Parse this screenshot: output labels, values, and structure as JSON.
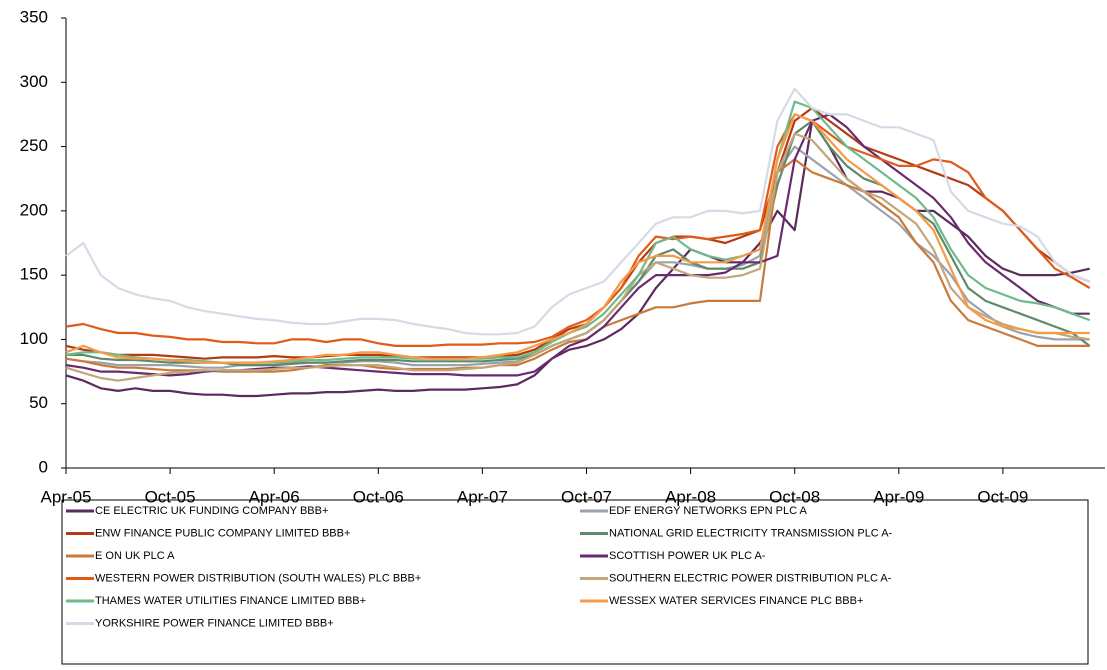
{
  "chart_data": {
    "type": "line",
    "categories": [
      "Apr-05",
      null,
      null,
      null,
      null,
      null,
      "Oct-05",
      null,
      null,
      null,
      null,
      null,
      "Apr-06",
      null,
      null,
      null,
      null,
      null,
      "Oct-06",
      null,
      null,
      null,
      null,
      null,
      "Apr-07",
      null,
      null,
      null,
      null,
      null,
      "Oct-07",
      null,
      null,
      null,
      null,
      null,
      "Apr-08",
      null,
      null,
      null,
      null,
      null,
      "Oct-08",
      null,
      null,
      null,
      null,
      null,
      "Apr-09",
      null,
      null,
      null,
      null,
      null,
      "Oct-09",
      null,
      null,
      null,
      null,
      null
    ],
    "ylim": [
      0,
      350
    ],
    "yticks": [
      0,
      50,
      100,
      150,
      200,
      250,
      300,
      350
    ],
    "grid": false,
    "series": [
      {
        "name": "CE ELECTRIC  UK FUNDING COMPANY BBB+",
        "color": "#5c2a5e",
        "values": [
          72,
          68,
          62,
          60,
          62,
          60,
          60,
          58,
          57,
          57,
          56,
          56,
          57,
          58,
          58,
          59,
          59,
          60,
          61,
          60,
          60,
          61,
          61,
          61,
          62,
          63,
          65,
          72,
          85,
          92,
          95,
          100,
          108,
          120,
          140,
          155,
          170,
          165,
          160,
          160,
          175,
          200,
          185,
          270,
          250,
          225,
          215,
          215,
          210,
          200,
          200,
          190,
          180,
          165,
          155,
          150,
          150,
          150,
          152,
          155
        ]
      },
      {
        "name": "EDF ENERGY NETWORKS  EPN PLC A",
        "color": "#9aa3ad",
        "values": [
          85,
          83,
          82,
          80,
          80,
          80,
          80,
          79,
          78,
          78,
          80,
          80,
          80,
          82,
          82,
          82,
          82,
          83,
          83,
          82,
          80,
          80,
          80,
          80,
          81,
          82,
          83,
          88,
          95,
          100,
          105,
          115,
          130,
          145,
          160,
          160,
          158,
          155,
          155,
          158,
          165,
          230,
          250,
          240,
          230,
          220,
          210,
          200,
          190,
          175,
          165,
          150,
          130,
          120,
          110,
          105,
          102,
          100,
          100,
          100
        ]
      },
      {
        "name": "ENW FINANCE PUBLIC COMPANY LIMITED BBB+",
        "color": "#b33a12",
        "values": [
          95,
          92,
          90,
          88,
          88,
          88,
          87,
          86,
          85,
          86,
          86,
          86,
          87,
          86,
          86,
          87,
          88,
          88,
          88,
          87,
          86,
          86,
          86,
          86,
          86,
          87,
          88,
          92,
          100,
          108,
          112,
          125,
          140,
          160,
          175,
          180,
          180,
          178,
          175,
          180,
          185,
          230,
          270,
          280,
          270,
          260,
          250,
          245,
          240,
          235,
          230,
          225,
          220,
          210,
          200,
          185,
          170,
          160,
          150,
          145
        ]
      },
      {
        "name": "NATIONAL GRID ELECTRICITY  TRANSMISSION PLC A-",
        "color": "#5f8a6a",
        "values": [
          88,
          88,
          85,
          84,
          84,
          83,
          82,
          82,
          82,
          82,
          80,
          80,
          80,
          81,
          82,
          82,
          83,
          84,
          84,
          84,
          83,
          83,
          83,
          83,
          83,
          84,
          85,
          88,
          95,
          100,
          105,
          115,
          130,
          145,
          165,
          170,
          160,
          155,
          155,
          155,
          160,
          220,
          260,
          270,
          250,
          235,
          225,
          220,
          210,
          200,
          190,
          165,
          140,
          130,
          125,
          120,
          115,
          110,
          105,
          95
        ]
      },
      {
        "name": "E ON UK PLC A",
        "color": "#c97a3a",
        "values": [
          85,
          83,
          80,
          78,
          78,
          77,
          76,
          76,
          76,
          75,
          75,
          75,
          75,
          76,
          78,
          80,
          80,
          80,
          78,
          77,
          77,
          77,
          77,
          78,
          78,
          80,
          80,
          85,
          92,
          98,
          100,
          110,
          115,
          120,
          125,
          125,
          128,
          130,
          130,
          130,
          130,
          230,
          240,
          230,
          225,
          220,
          215,
          205,
          195,
          175,
          160,
          130,
          115,
          110,
          105,
          100,
          95,
          95,
          95,
          95
        ]
      },
      {
        "name": "SCOTTISH POWER UK PLC A-",
        "color": "#6a2a6e",
        "values": [
          80,
          78,
          75,
          75,
          74,
          73,
          72,
          73,
          75,
          76,
          76,
          77,
          78,
          78,
          79,
          78,
          77,
          76,
          75,
          74,
          73,
          73,
          73,
          72,
          72,
          72,
          72,
          75,
          85,
          95,
          100,
          110,
          125,
          140,
          150,
          150,
          150,
          150,
          152,
          160,
          160,
          165,
          240,
          270,
          275,
          265,
          250,
          240,
          230,
          220,
          210,
          195,
          175,
          160,
          150,
          140,
          130,
          125,
          120,
          120
        ]
      },
      {
        "name": "WESTERN POWER DISTRIBUTION (SOUTH WALES) PLC BBB+",
        "color": "#e05a1a",
        "values": [
          110,
          112,
          108,
          105,
          105,
          103,
          102,
          100,
          100,
          98,
          98,
          97,
          97,
          100,
          100,
          98,
          100,
          100,
          97,
          95,
          95,
          95,
          96,
          96,
          96,
          97,
          97,
          98,
          102,
          110,
          115,
          125,
          140,
          165,
          180,
          178,
          180,
          178,
          180,
          182,
          185,
          250,
          275,
          270,
          260,
          250,
          245,
          240,
          235,
          235,
          240,
          238,
          230,
          210,
          200,
          185,
          170,
          155,
          148,
          140
        ]
      },
      {
        "name": "SOUTHERN ELECTRIC POWER DISTRIBUTION  PLC A-",
        "color": "#c3a67a",
        "values": [
          78,
          74,
          70,
          68,
          70,
          72,
          74,
          75,
          76,
          76,
          76,
          76,
          77,
          78,
          78,
          79,
          80,
          80,
          80,
          78,
          76,
          76,
          76,
          77,
          78,
          80,
          82,
          88,
          95,
          100,
          105,
          115,
          130,
          150,
          160,
          155,
          150,
          148,
          148,
          150,
          155,
          230,
          260,
          255,
          240,
          225,
          215,
          210,
          200,
          190,
          170,
          140,
          125,
          118,
          112,
          108,
          105,
          105,
          102,
          100
        ]
      },
      {
        "name": "THAMES WATER UTILITIES FINANCE LIMITED  BBB+",
        "color": "#6fba8a",
        "values": [
          88,
          90,
          90,
          88,
          86,
          85,
          84,
          84,
          83,
          82,
          82,
          82,
          82,
          83,
          84,
          84,
          85,
          86,
          86,
          86,
          85,
          85,
          85,
          85,
          85,
          86,
          86,
          90,
          98,
          105,
          110,
          120,
          135,
          150,
          175,
          180,
          170,
          165,
          162,
          165,
          170,
          240,
          285,
          280,
          265,
          250,
          240,
          230,
          220,
          210,
          195,
          170,
          150,
          140,
          135,
          130,
          128,
          125,
          120,
          115
        ]
      },
      {
        "name": "WESSEX WATER SERVICES FINANCE PLC BBB+",
        "color": "#f79a46",
        "values": [
          90,
          95,
          90,
          86,
          85,
          85,
          84,
          83,
          82,
          82,
          82,
          82,
          83,
          84,
          86,
          88,
          88,
          90,
          90,
          88,
          86,
          85,
          85,
          85,
          86,
          88,
          90,
          95,
          100,
          105,
          112,
          125,
          145,
          160,
          165,
          165,
          160,
          160,
          160,
          165,
          170,
          240,
          275,
          270,
          255,
          240,
          230,
          220,
          210,
          200,
          185,
          155,
          125,
          115,
          110,
          108,
          105,
          105,
          105,
          105
        ]
      },
      {
        "name": "YORKSHIRE POWER FINANCE  LIMITED  BBB+",
        "color": "#d5dbe6",
        "values": [
          165,
          175,
          150,
          140,
          135,
          132,
          130,
          125,
          122,
          120,
          118,
          116,
          115,
          113,
          112,
          112,
          114,
          116,
          116,
          115,
          112,
          110,
          108,
          105,
          104,
          104,
          105,
          110,
          125,
          135,
          140,
          145,
          160,
          175,
          190,
          195,
          195,
          200,
          200,
          198,
          200,
          270,
          295,
          280,
          275,
          275,
          270,
          265,
          265,
          260,
          255,
          215,
          200,
          195,
          190,
          188,
          180,
          160,
          150,
          145
        ]
      }
    ]
  }
}
